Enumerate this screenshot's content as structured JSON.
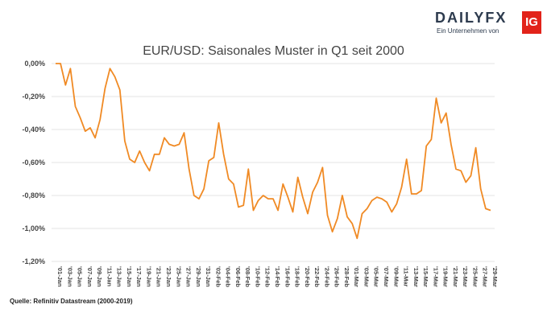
{
  "logo": {
    "wordmark": "DAILYFX",
    "tagline": "Ein Unternehmen von",
    "badge": "IG",
    "colors": {
      "text": "#2d3b4e",
      "badge": "#e2231a"
    }
  },
  "source": "Quelle: Refinitiv Datastream (2000-2019)",
  "chart_data": {
    "type": "line",
    "title": "EUR/USD: Saisonales Muster in Q1 seit 2000",
    "xlabel": "",
    "ylabel": "",
    "ylim": [
      -1.2,
      0.0
    ],
    "y_ticks": [
      0,
      -0.2,
      -0.4,
      -0.6,
      -0.8,
      -1.0,
      -1.2
    ],
    "y_tick_labels": [
      "0,00%",
      "-0,20%",
      "-0,40%",
      "-0,60%",
      "-0,80%",
      "-1,00%",
      "-1,20%"
    ],
    "x_tick_labels": [
      "'01-Jan",
      "'03-Jan",
      "'05-Jan",
      "'07-Jan",
      "'09-Jan",
      "'11-Jan",
      "'13-Jan",
      "'15-Jan",
      "'17-Jan",
      "'19-Jan",
      "'21-Jan",
      "'23-Jan",
      "'25-Jan",
      "'27-Jan",
      "'29-Jan",
      "'31-Jan",
      "'02-Feb",
      "'04-Feb",
      "'06-Feb",
      "'08-Feb",
      "'10-Feb",
      "'12-Feb",
      "'14-Feb",
      "'16-Feb",
      "'18-Feb",
      "'20-Feb",
      "'22-Feb",
      "'24-Feb",
      "'26-Feb",
      "'28-Feb",
      "'01-Mar",
      "'03-Mar",
      "'05-Mar",
      "'07-Mar",
      "'09-Mar",
      "'11-Mar",
      "'13-Mar",
      "'15-Mar",
      "'17-Mar",
      "'19-Mar",
      "'21-Mar",
      "'23-Mar",
      "'25-Mar",
      "'27-Mar",
      "'29-Mar"
    ],
    "grid": true,
    "line_color": "#f08a24",
    "series": [
      {
        "values": [
          0.0,
          0.0,
          -0.13,
          -0.03,
          -0.26,
          -0.33,
          -0.41,
          -0.39,
          -0.45,
          -0.34,
          -0.15,
          -0.03,
          -0.08,
          -0.16,
          -0.47,
          -0.58,
          -0.6,
          -0.53,
          -0.6,
          -0.65,
          -0.55,
          -0.55,
          -0.45,
          -0.49,
          -0.5,
          -0.49,
          -0.42,
          -0.64,
          -0.8,
          -0.82,
          -0.76,
          -0.59,
          -0.57,
          -0.36,
          -0.55,
          -0.7,
          -0.73,
          -0.87,
          -0.86,
          -0.64,
          -0.89,
          -0.83,
          -0.8,
          -0.82,
          -0.82,
          -0.89,
          -0.73,
          -0.81,
          -0.9,
          -0.69,
          -0.81,
          -0.91,
          -0.78,
          -0.72,
          -0.63,
          -0.92,
          -1.02,
          -0.94,
          -0.8,
          -0.93,
          -0.97,
          -1.06,
          -0.91,
          -0.88,
          -0.83,
          -0.81,
          -0.82,
          -0.84,
          -0.9,
          -0.85,
          -0.75,
          -0.58,
          -0.79,
          -0.79,
          -0.77,
          -0.5,
          -0.46,
          -0.21,
          -0.36,
          -0.3,
          -0.49,
          -0.64,
          -0.65,
          -0.72,
          -0.68,
          -0.51,
          -0.76,
          -0.88,
          -0.89
        ]
      }
    ]
  }
}
